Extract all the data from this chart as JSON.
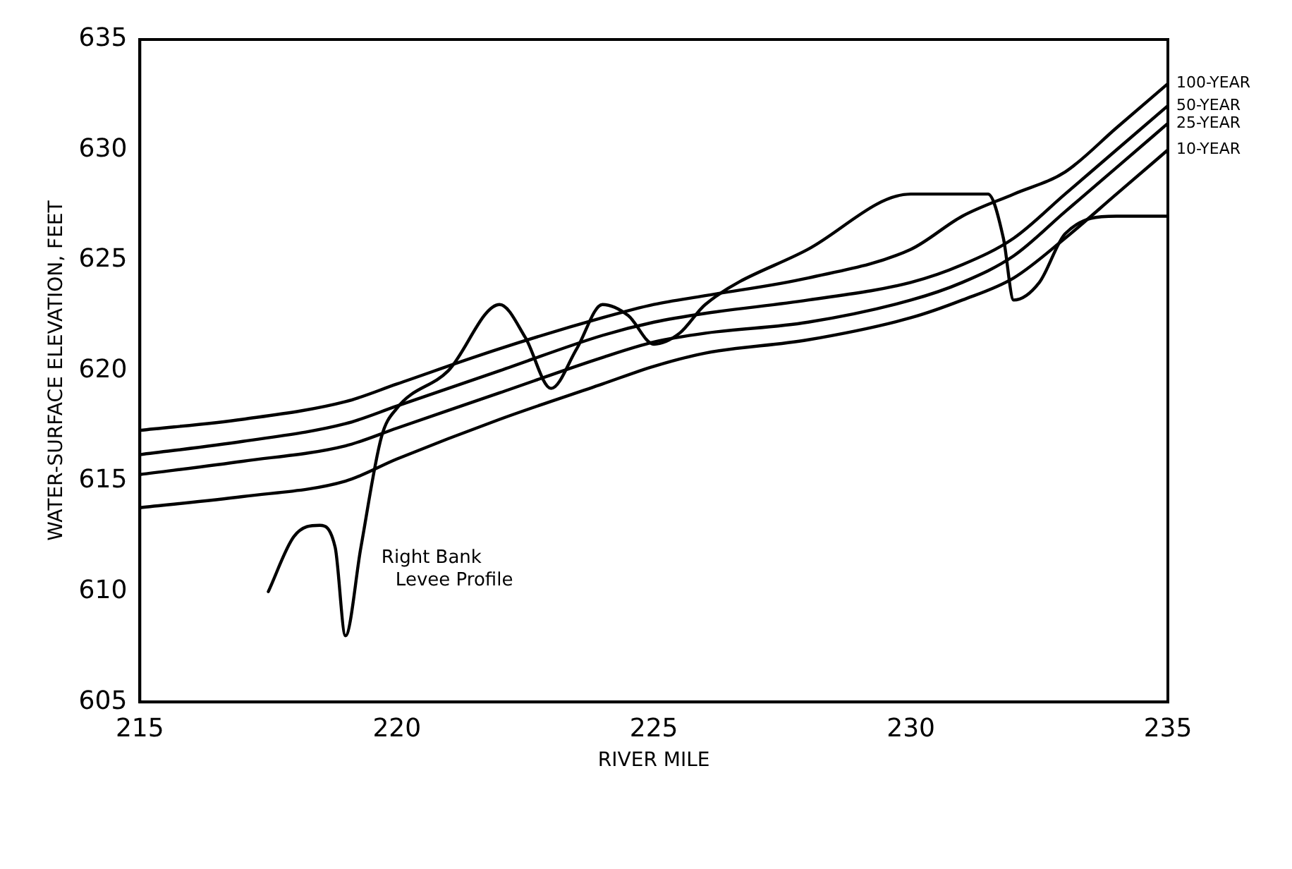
{
  "chart_data": {
    "type": "line",
    "xlabel": "RIVER MILE",
    "ylabel": "WATER-SURFACE ELEVATION, FEET",
    "xlim": [
      215,
      235
    ],
    "xticks": [
      215,
      220,
      225,
      230,
      235
    ],
    "ylim": [
      605,
      635
    ],
    "yticks": [
      605,
      610,
      615,
      620,
      625,
      630,
      635
    ],
    "grid": false,
    "legend": false,
    "marker": "none",
    "line_style": "solid",
    "series": [
      {
        "name": "100-YEAR",
        "color": "#000000",
        "x": [
          215,
          217,
          219,
          220,
          222,
          224,
          225,
          226,
          228,
          230,
          231,
          232,
          233,
          234,
          235
        ],
        "values": [
          617.3,
          617.8,
          618.6,
          619.4,
          621,
          622.4,
          623,
          623.4,
          624.2,
          625.5,
          627,
          628,
          629,
          631,
          633
        ]
      },
      {
        "name": "50-YEAR",
        "color": "#000000",
        "x": [
          215,
          217,
          219,
          220,
          222,
          224,
          225,
          226,
          228,
          230,
          231,
          232,
          233,
          234,
          235
        ],
        "values": [
          616.2,
          616.8,
          617.6,
          618.4,
          620,
          621.6,
          622.2,
          622.6,
          623.2,
          624,
          624.8,
          626,
          628,
          630,
          632
        ]
      },
      {
        "name": "25-YEAR",
        "color": "#000000",
        "x": [
          215,
          217,
          219,
          220,
          222,
          224,
          225,
          226,
          228,
          230,
          231,
          232,
          233,
          234,
          235
        ],
        "values": [
          615.3,
          615.9,
          616.6,
          617.4,
          619,
          620.6,
          621.3,
          621.7,
          622.2,
          623.2,
          624,
          625.2,
          627.2,
          629.2,
          631.2
        ]
      },
      {
        "name": "10-YEAR",
        "color": "#000000",
        "x": [
          215,
          217,
          219,
          220,
          222,
          224,
          225,
          226,
          228,
          230,
          231,
          232,
          233,
          234,
          235
        ],
        "values": [
          613.8,
          614.3,
          615,
          616,
          617.8,
          619.4,
          620.2,
          620.8,
          621.4,
          622.4,
          623.2,
          624.2,
          626,
          628,
          630
        ]
      },
      {
        "color": "#000000",
        "x": [
          217.5,
          218,
          218.5,
          218.8,
          219,
          219.3,
          219.7,
          220,
          221,
          222,
          222.5,
          223,
          223.5,
          224,
          224.5,
          225,
          225.5,
          226,
          228,
          230,
          231.5,
          231.8,
          232,
          232.5,
          233,
          234,
          235
        ],
        "values": [
          610,
          612.5,
          613,
          612,
          608,
          612,
          617,
          618.3,
          620,
          623,
          621.5,
          619.2,
          621,
          623,
          622.5,
          621.2,
          621.7,
          623,
          625.5,
          628,
          628,
          626,
          623.2,
          624,
          626.2,
          627,
          627
        ]
      }
    ],
    "annotations": [
      "Right Bank Levee Profile"
    ]
  }
}
